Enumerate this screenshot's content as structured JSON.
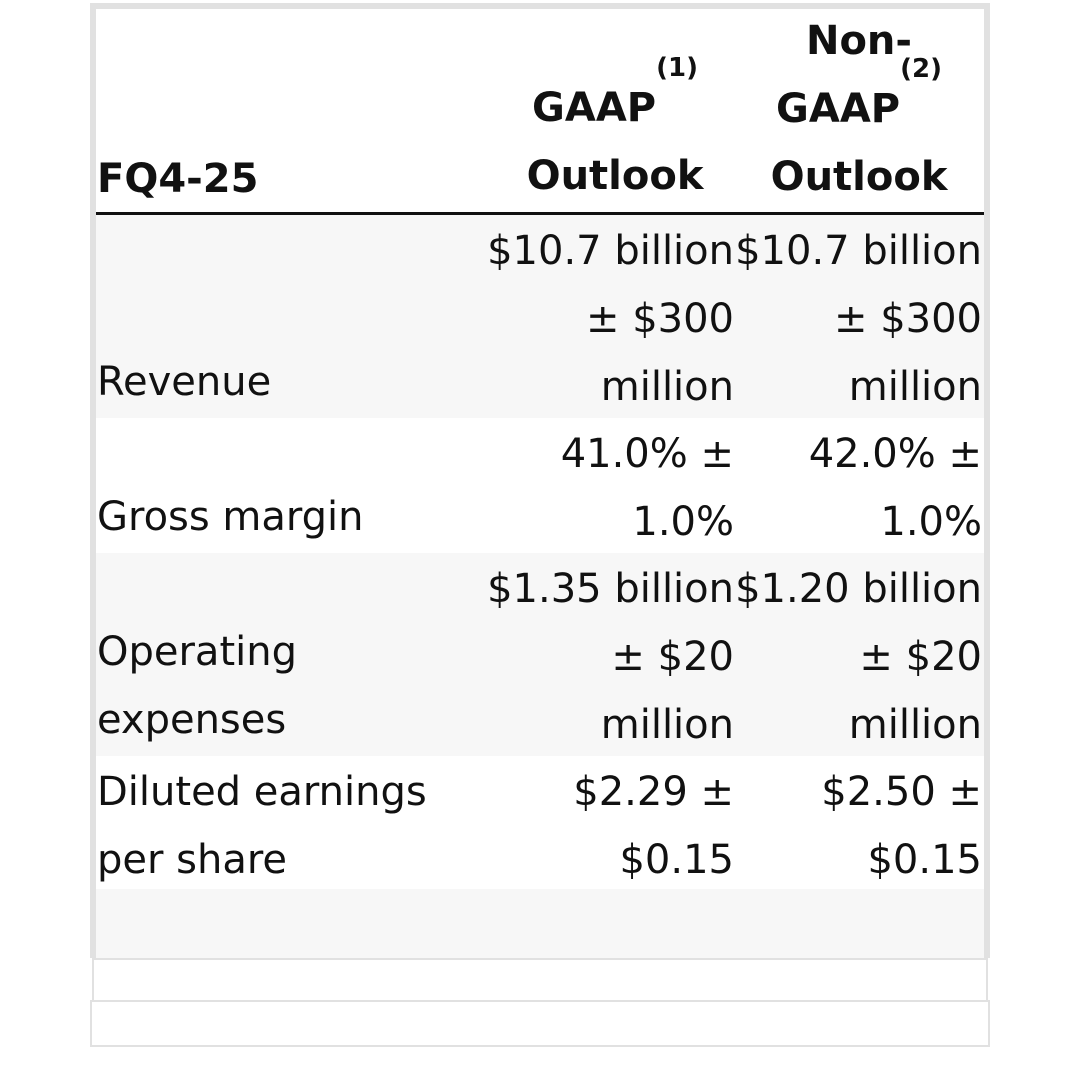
{
  "header": {
    "period": "FQ4-25",
    "gaap_label": "GAAP",
    "gaap_note": "(1)",
    "gaap_sub": "Outlook",
    "nongaap_prefix": "Non-",
    "nongaap_label": "GAAP",
    "nongaap_note": "(2)",
    "nongaap_sub": "Outlook"
  },
  "rows": [
    {
      "label": "Revenue",
      "gaap": [
        "$10.7 billion",
        "± $300",
        "million"
      ],
      "nongaap": [
        "$10.7 billion",
        "± $300",
        "million"
      ]
    },
    {
      "label": "Gross margin",
      "gaap": [
        "41.0% ±",
        "1.0%"
      ],
      "nongaap": [
        "42.0% ±",
        "1.0%"
      ]
    },
    {
      "label_lines": [
        "Operating",
        "expenses"
      ],
      "gaap": [
        "$1.35 billion",
        "± $20",
        "million"
      ],
      "nongaap": [
        "$1.20 billion",
        "± $20",
        "million"
      ]
    },
    {
      "label_lines": [
        "Diluted earnings",
        "per share"
      ],
      "gaap": [
        "$2.29 ±",
        "$0.15"
      ],
      "nongaap": [
        "$2.50 ±",
        "$0.15"
      ]
    }
  ]
}
